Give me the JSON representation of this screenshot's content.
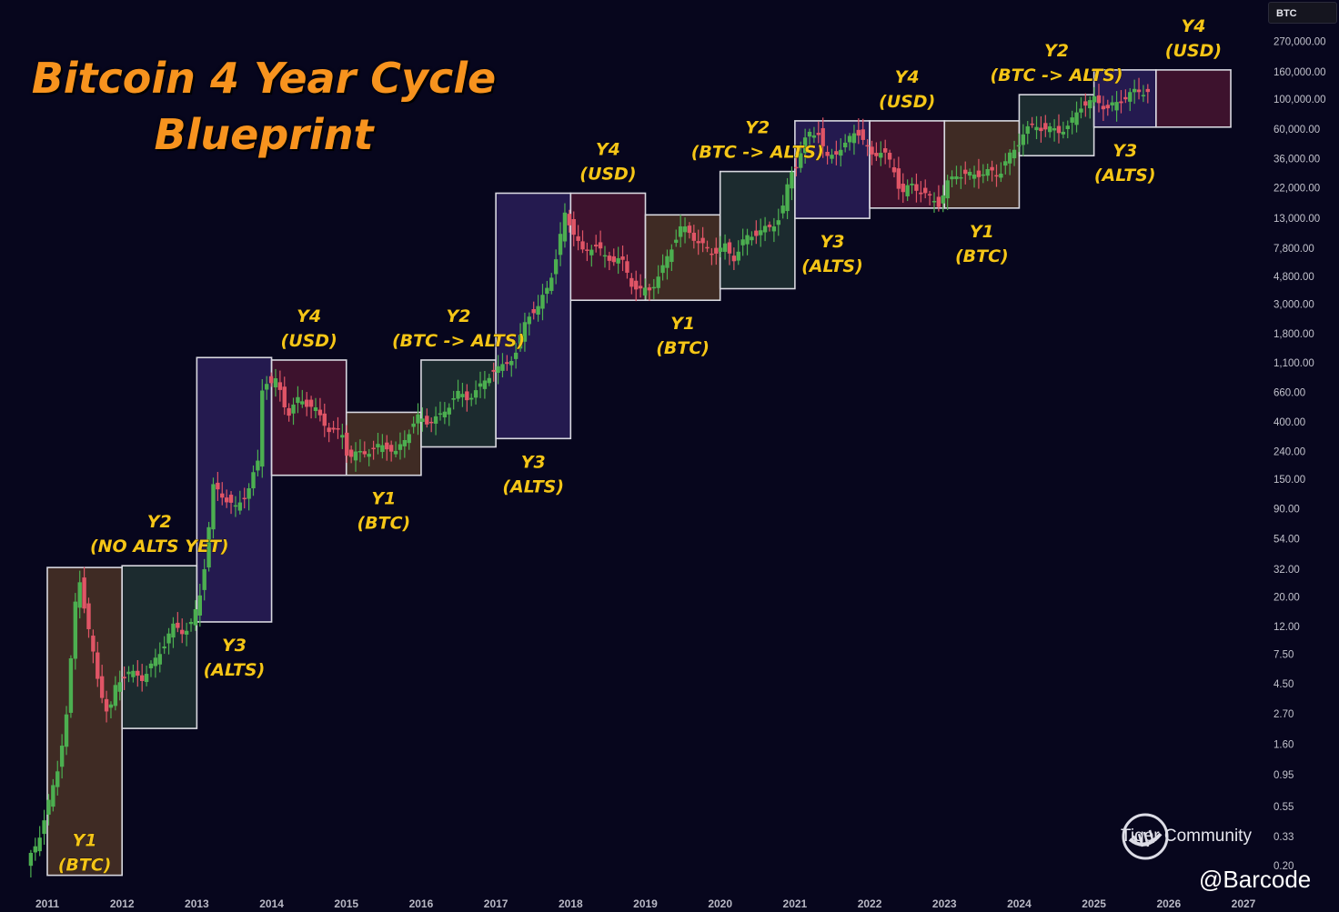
{
  "title": {
    "line1": "Bitcoin 4 Year Cycle",
    "line2": "Blueprint"
  },
  "ticker": "BTC",
  "watermark": {
    "brand": "Tiger Community",
    "author": "@Barcode"
  },
  "colors": {
    "up": "#4caf50",
    "down": "#e05566",
    "label": "#f5c518",
    "title": "#f7931e"
  },
  "chart_data": {
    "type": "candlestick",
    "scale": "log",
    "ylim": [
      0.12,
      400000
    ],
    "xlim": [
      2010.7,
      2027.2
    ],
    "x_ticks": [
      "2011",
      "2012",
      "2013",
      "2014",
      "2015",
      "2016",
      "2017",
      "2018",
      "2019",
      "2020",
      "2021",
      "2022",
      "2023",
      "2024",
      "2025",
      "2026",
      "2027"
    ],
    "y_ticks": [
      "270,000.00",
      "160,000.00",
      "100,000.00",
      "60,000.00",
      "36,000.00",
      "22,000.00",
      "13,000.00",
      "7,800.00",
      "4,800.00",
      "3,000.00",
      "1,800.00",
      "1,100.00",
      "660.00",
      "400.00",
      "240.00",
      "150.00",
      "90.00",
      "54.00",
      "32.00",
      "20.00",
      "12.00",
      "7.50",
      "4.50",
      "2.70",
      "1.60",
      "0.95",
      "0.55",
      "0.33",
      "0.20"
    ],
    "phases": [
      {
        "id": "p1",
        "line1": "Y1",
        "line2": "(BTC)",
        "label_pos": "inside-bottom",
        "x0": 2011.0,
        "x1": 2012.0,
        "low": 0.17,
        "high": 33,
        "color": "#6e4a2a"
      },
      {
        "id": "p2",
        "line1": "Y2",
        "line2": "(NO ALTS YET)",
        "label_pos": "above",
        "x0": 2012.0,
        "x1": 2013.0,
        "low": 2.1,
        "high": 34,
        "color": "#2e4a3e"
      },
      {
        "id": "p3",
        "line1": "Y3",
        "line2": "(ALTS)",
        "label_pos": "below",
        "x0": 2013.0,
        "x1": 2014.0,
        "low": 13,
        "high": 1200,
        "color": "#3c2c78"
      },
      {
        "id": "p4",
        "line1": "Y4",
        "line2": "(USD)",
        "label_pos": "above",
        "x0": 2014.0,
        "x1": 2015.0,
        "low": 160,
        "high": 1150,
        "color": "#6a1e3a"
      },
      {
        "id": "p5",
        "line1": "Y1",
        "line2": "(BTC)",
        "label_pos": "below",
        "x0": 2015.0,
        "x1": 2016.0,
        "low": 160,
        "high": 470,
        "color": "#6e4a2a"
      },
      {
        "id": "p6",
        "line1": "Y2",
        "line2": "(BTC -> ALTS)",
        "label_pos": "above",
        "x0": 2016.0,
        "x1": 2017.0,
        "low": 260,
        "high": 1150,
        "color": "#2e4a3e"
      },
      {
        "id": "p7",
        "line1": "Y3",
        "line2": "(ALTS)",
        "label_pos": "below",
        "x0": 2017.0,
        "x1": 2018.0,
        "low": 300,
        "high": 20000,
        "color": "#3c2c78"
      },
      {
        "id": "p8",
        "line1": "Y4",
        "line2": "(USD)",
        "label_pos": "above",
        "x0": 2018.0,
        "x1": 2019.0,
        "low": 3200,
        "high": 20000,
        "color": "#6a1e3a"
      },
      {
        "id": "p9",
        "line1": "Y1",
        "line2": "(BTC)",
        "label_pos": "below",
        "x0": 2019.0,
        "x1": 2020.0,
        "low": 3200,
        "high": 13800,
        "color": "#6e4a2a"
      },
      {
        "id": "p10",
        "line1": "Y2",
        "line2": "(BTC -> ALTS)",
        "label_pos": "above",
        "x0": 2020.0,
        "x1": 2021.0,
        "low": 3900,
        "high": 29000,
        "color": "#2e4a3e"
      },
      {
        "id": "p11",
        "line1": "Y3",
        "line2": "(ALTS)",
        "label_pos": "below",
        "x0": 2021.0,
        "x1": 2022.0,
        "low": 13000,
        "high": 69000,
        "color": "#3c2c78"
      },
      {
        "id": "p12",
        "line1": "Y4",
        "line2": "(USD)",
        "label_pos": "above",
        "x0": 2022.0,
        "x1": 2023.0,
        "low": 15500,
        "high": 69000,
        "color": "#6a1e3a"
      },
      {
        "id": "p13",
        "line1": "Y1",
        "line2": "(BTC)",
        "label_pos": "below",
        "x0": 2023.0,
        "x1": 2024.0,
        "low": 15500,
        "high": 69000,
        "color": "#6e4a2a"
      },
      {
        "id": "p14",
        "line1": "Y2",
        "line2": "(BTC -> ALTS)",
        "label_pos": "above",
        "x0": 2024.0,
        "x1": 2025.0,
        "low": 38000,
        "high": 108000,
        "color": "#2e4a3e"
      },
      {
        "id": "p15",
        "line1": "Y3",
        "line2": "(ALTS)",
        "label_pos": "below",
        "x0": 2025.0,
        "x1": 2025.83,
        "low": 62000,
        "high": 165000,
        "color": "#3c2c78"
      },
      {
        "id": "p16",
        "line1": "Y4",
        "line2": "(USD)",
        "label_pos": "above",
        "x0": 2025.83,
        "x1": 2026.83,
        "low": 62000,
        "high": 165000,
        "color": "#6a1e3a"
      }
    ],
    "price_anchors": [
      [
        2010.75,
        0.2
      ],
      [
        2010.9,
        0.3
      ],
      [
        2011.05,
        0.6
      ],
      [
        2011.15,
        0.9
      ],
      [
        2011.3,
        3
      ],
      [
        2011.4,
        17
      ],
      [
        2011.45,
        30
      ],
      [
        2011.55,
        14
      ],
      [
        2011.7,
        5
      ],
      [
        2011.85,
        2.5
      ],
      [
        2011.95,
        4.5
      ],
      [
        2012.1,
        5.5
      ],
      [
        2012.3,
        5
      ],
      [
        2012.5,
        7
      ],
      [
        2012.7,
        12
      ],
      [
        2012.85,
        11
      ],
      [
        2012.98,
        13
      ],
      [
        2013.1,
        24
      ],
      [
        2013.25,
        130
      ],
      [
        2013.4,
        110
      ],
      [
        2013.55,
        90
      ],
      [
        2013.7,
        120
      ],
      [
        2013.85,
        200
      ],
      [
        2013.92,
        1000
      ],
      [
        2013.98,
        750
      ],
      [
        2014.1,
        800
      ],
      [
        2014.25,
        450
      ],
      [
        2014.4,
        600
      ],
      [
        2014.6,
        500
      ],
      [
        2014.8,
        350
      ],
      [
        2014.98,
        320
      ],
      [
        2015.05,
        220
      ],
      [
        2015.3,
        240
      ],
      [
        2015.55,
        270
      ],
      [
        2015.7,
        230
      ],
      [
        2015.85,
        330
      ],
      [
        2015.98,
        430
      ],
      [
        2016.1,
        400
      ],
      [
        2016.3,
        440
      ],
      [
        2016.5,
        650
      ],
      [
        2016.65,
        600
      ],
      [
        2016.8,
        700
      ],
      [
        2016.98,
        960
      ],
      [
        2017.1,
        1000
      ],
      [
        2017.3,
        1300
      ],
      [
        2017.45,
        2500
      ],
      [
        2017.6,
        2800
      ],
      [
        2017.75,
        4500
      ],
      [
        2017.85,
        7000
      ],
      [
        2017.95,
        14000
      ],
      [
        2018.05,
        11000
      ],
      [
        2018.2,
        7000
      ],
      [
        2018.35,
        8500
      ],
      [
        2018.5,
        6500
      ],
      [
        2018.7,
        6500
      ],
      [
        2018.85,
        4200
      ],
      [
        2018.98,
        3700
      ],
      [
        2019.1,
        3900
      ],
      [
        2019.25,
        5300
      ],
      [
        2019.4,
        8500
      ],
      [
        2019.5,
        11000
      ],
      [
        2019.6,
        10500
      ],
      [
        2019.75,
        8500
      ],
      [
        2019.9,
        7200
      ],
      [
        2020.1,
        8000
      ],
      [
        2020.2,
        6400
      ],
      [
        2020.35,
        9000
      ],
      [
        2020.55,
        10500
      ],
      [
        2020.7,
        11000
      ],
      [
        2020.85,
        14000
      ],
      [
        2020.97,
        28000
      ],
      [
        2021.05,
        33000
      ],
      [
        2021.2,
        55000
      ],
      [
        2021.35,
        57000
      ],
      [
        2021.45,
        35000
      ],
      [
        2021.55,
        40000
      ],
      [
        2021.7,
        45000
      ],
      [
        2021.85,
        61000
      ],
      [
        2021.97,
        46000
      ],
      [
        2022.05,
        38000
      ],
      [
        2022.2,
        42000
      ],
      [
        2022.35,
        30000
      ],
      [
        2022.45,
        20000
      ],
      [
        2022.6,
        23000
      ],
      [
        2022.8,
        19000
      ],
      [
        2022.97,
        16500
      ],
      [
        2023.05,
        23000
      ],
      [
        2023.2,
        28000
      ],
      [
        2023.4,
        27000
      ],
      [
        2023.6,
        29000
      ],
      [
        2023.75,
        27000
      ],
      [
        2023.85,
        35000
      ],
      [
        2023.98,
        42000
      ],
      [
        2024.1,
        60000
      ],
      [
        2024.25,
        63000
      ],
      [
        2024.4,
        60000
      ],
      [
        2024.55,
        58000
      ],
      [
        2024.7,
        63000
      ],
      [
        2024.85,
        90000
      ],
      [
        2024.98,
        94000
      ],
      [
        2025.05,
        102000
      ],
      [
        2025.2,
        84000
      ],
      [
        2025.35,
        95000
      ],
      [
        2025.5,
        108000
      ],
      [
        2025.6,
        115000
      ],
      [
        2025.7,
        114000
      ]
    ]
  }
}
